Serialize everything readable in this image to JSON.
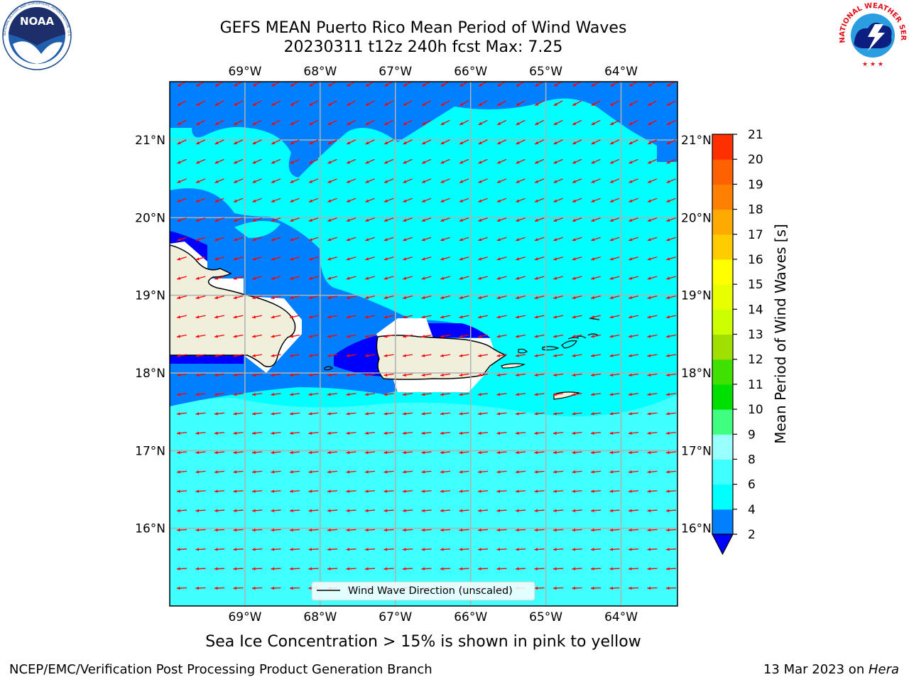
{
  "header": {
    "title_line1": "GEFS MEAN Puerto Rico Mean Period of Wind Waves",
    "title_line2": "20230311 t12z 240h fcst   Max: 7.25"
  },
  "logos": {
    "noaa_text": "NOAA",
    "noaa_ring_text": "NATIONAL OCEANIC AND ATMOSPHERIC ADMINISTRATION · U.S. DEPARTMENT OF COMMERCE",
    "nws_ring_text": "NATIONAL WEATHER SERVICE"
  },
  "map": {
    "lon_ticks": [
      "69°W",
      "68°W",
      "67°W",
      "66°W",
      "65°W",
      "64°W"
    ],
    "lon_values": [
      -69,
      -68,
      -67,
      -66,
      -65,
      -64
    ],
    "lat_ticks": [
      "21°N",
      "20°N",
      "19°N",
      "18°N",
      "17°N",
      "16°N"
    ],
    "lat_values": [
      21,
      20,
      19,
      18,
      17,
      16
    ],
    "extent": {
      "lon": [
        -70,
        -63.25
      ],
      "lat": [
        15,
        21.75
      ]
    },
    "arrow_color": "#ff0000",
    "legend_label": "Wind Wave Direction (unscaled)"
  },
  "colorbar": {
    "label": "Mean Period of Wind Waves [s]",
    "levels": [
      "2",
      "4",
      "6",
      "8",
      "9",
      "10",
      "11",
      "12",
      "13",
      "14",
      "15",
      "16",
      "17",
      "18",
      "19",
      "20",
      "21"
    ],
    "colors": [
      "#0080ff",
      "#00ffff",
      "#40ffff",
      "#99ffff",
      "#40ff80",
      "#00e000",
      "#40e000",
      "#a0e000",
      "#ccff00",
      "#e8ff00",
      "#ffff00",
      "#ffcc00",
      "#ffaa00",
      "#ff8000",
      "#ff6000",
      "#ff3000",
      "#ff0000"
    ],
    "under_color": "#0000ff"
  },
  "note": "Sea Ice Concentration > 15% is shown in pink to yellow",
  "footer": {
    "left": "NCEP/EMC/Verification Post Processing Product Generation Branch",
    "right_prefix": "13 Mar 2023 on ",
    "right_host": "Hera"
  }
}
